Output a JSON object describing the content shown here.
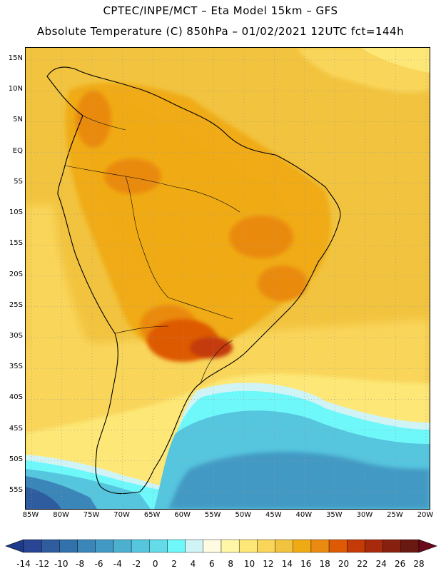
{
  "header": {
    "line1": "CPTEC/INPE/MCT –  Eta Model 15km – GFS",
    "line2": "Absolute Temperature (C) 850hPa – 01/02/2021 12UTC fct=144h"
  },
  "map": {
    "lat_labels": [
      "15N",
      "10N",
      "5N",
      "EQ",
      "5S",
      "10S",
      "15S",
      "20S",
      "25S",
      "30S",
      "35S",
      "40S",
      "45S",
      "50S",
      "55S"
    ],
    "lon_labels": [
      "85W",
      "80W",
      "75W",
      "70W",
      "65W",
      "60W",
      "55W",
      "50W",
      "45W",
      "40W",
      "35W",
      "30W",
      "25W",
      "20W"
    ],
    "lat_range": [
      15,
      -55
    ],
    "lon_range": [
      -85,
      -20
    ]
  },
  "colorbar": {
    "labels": [
      "-14",
      "-12",
      "-10",
      "-8",
      "-6",
      "-4",
      "-2",
      "0",
      "2",
      "4",
      "6",
      "8",
      "10",
      "12",
      "14",
      "16",
      "18",
      "20",
      "22",
      "24",
      "26",
      "28"
    ],
    "colors": [
      "#2a4593",
      "#2e5c9e",
      "#3271ac",
      "#3a86b9",
      "#429ac4",
      "#4cb0d1",
      "#56c5de",
      "#64dbe9",
      "#6ff8fa",
      "#d0f4f6",
      "#fffbe3",
      "#fff7a6",
      "#fde877",
      "#f9d55a",
      "#f2c33e",
      "#f0ab14",
      "#ea8a10",
      "#de5a05",
      "#c43b08",
      "#a82a0c",
      "#882010",
      "#6a1812"
    ],
    "under_color": "#1e3a8a",
    "over_color": "#6a0a1a"
  }
}
